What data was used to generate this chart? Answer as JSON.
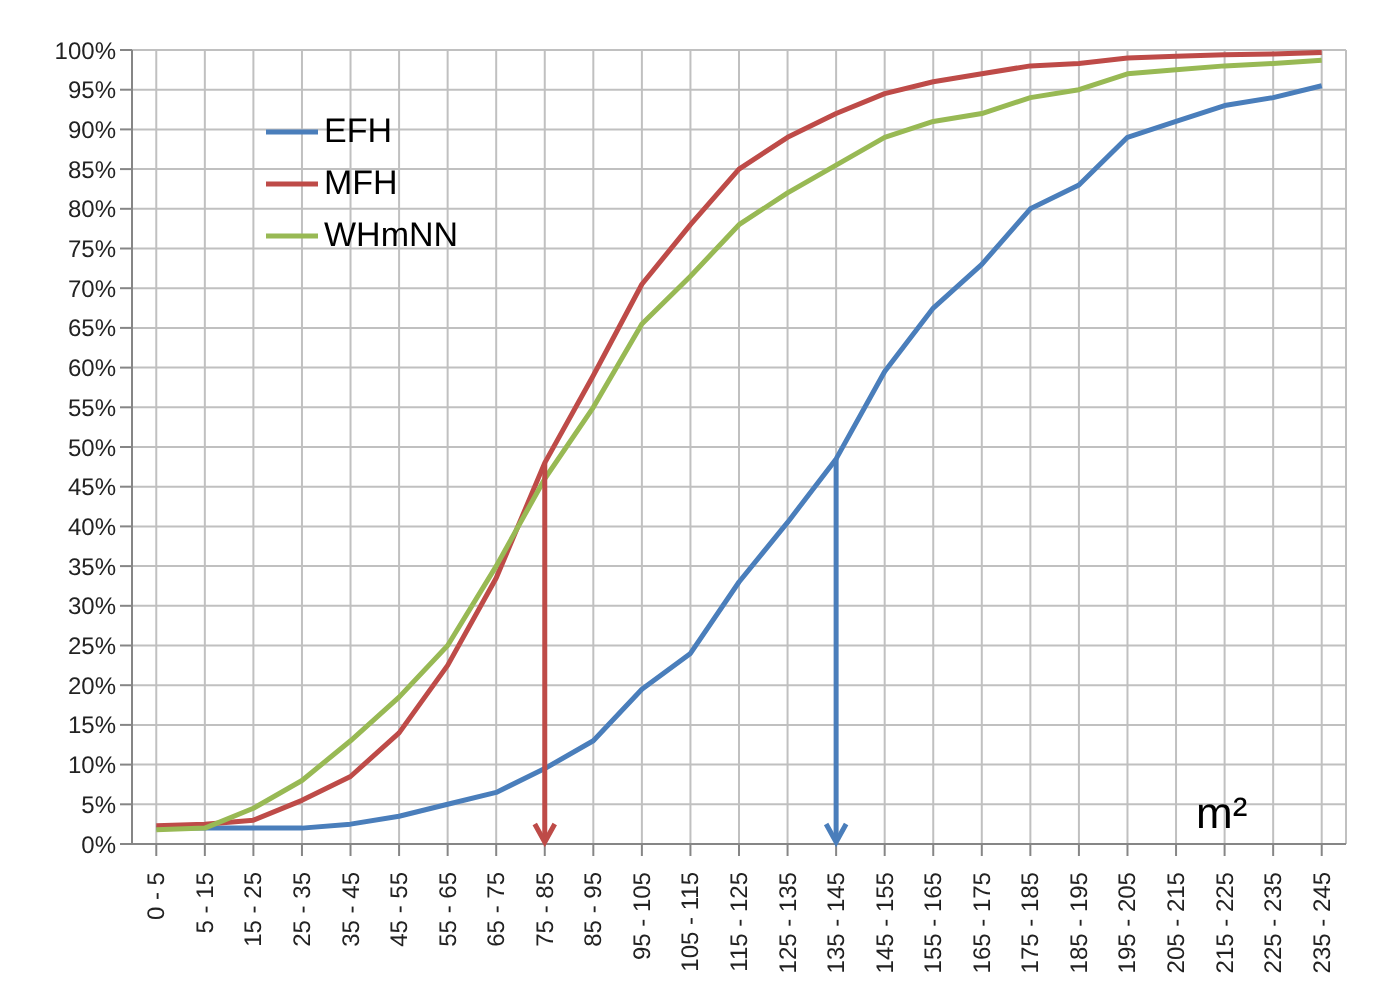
{
  "chart_data": {
    "type": "line",
    "xlabel": "m²",
    "categories": [
      "0 - 5",
      "5 - 15",
      "15 - 25",
      "25 - 35",
      "35 - 45",
      "45 - 55",
      "55 - 65",
      "65 - 75",
      "75 - 85",
      "85 - 95",
      "95 - 105",
      "105 - 115",
      "115 - 125",
      "125 - 135",
      "135 - 145",
      "145 - 155",
      "155 - 165",
      "165 - 175",
      "175 - 185",
      "185 - 195",
      "195 - 205",
      "205 - 215",
      "215 - 225",
      "225 - 235",
      "235 - 245"
    ],
    "series": [
      {
        "name": "EFH",
        "color": "#4a7ebb",
        "values": [
          2,
          2,
          2,
          2,
          2.5,
          3.5,
          5,
          6.5,
          9.5,
          13,
          19.5,
          24,
          33,
          40.5,
          48.5,
          59.5,
          67.5,
          73,
          80,
          83,
          89,
          91,
          93,
          94,
          95.5
        ]
      },
      {
        "name": "MFH",
        "color": "#be4b48",
        "values": [
          2.3,
          2.5,
          3,
          5.5,
          8.5,
          14,
          22.5,
          33.5,
          48,
          59,
          70.5,
          78,
          85,
          89,
          92,
          94.5,
          96,
          97,
          98,
          98.3,
          99,
          99.2,
          99.4,
          99.5,
          99.7
        ]
      },
      {
        "name": "WHmNN",
        "color": "#98b954",
        "values": [
          1.8,
          2,
          4.5,
          8,
          13,
          18.5,
          25,
          35,
          46,
          55,
          65.5,
          71.5,
          78,
          82,
          85.5,
          89,
          91,
          92,
          94,
          95,
          97,
          97.5,
          98,
          98.3,
          98.7
        ]
      }
    ],
    "ylim": [
      0,
      100
    ],
    "yticks": [
      {
        "value": 0,
        "label": "0%"
      },
      {
        "value": 5,
        "label": "5%"
      },
      {
        "value": 10,
        "label": "10%"
      },
      {
        "value": 15,
        "label": "15%"
      },
      {
        "value": 20,
        "label": "20%"
      },
      {
        "value": 25,
        "label": "25%"
      },
      {
        "value": 30,
        "label": "30%"
      },
      {
        "value": 35,
        "label": "35%"
      },
      {
        "value": 40,
        "label": "40%"
      },
      {
        "value": 45,
        "label": "45%"
      },
      {
        "value": 50,
        "label": "50%"
      },
      {
        "value": 55,
        "label": "55%"
      },
      {
        "value": 60,
        "label": "60%"
      },
      {
        "value": 65,
        "label": "65%"
      },
      {
        "value": 70,
        "label": "70%"
      },
      {
        "value": 75,
        "label": "75%"
      },
      {
        "value": 80,
        "label": "80%"
      },
      {
        "value": 85,
        "label": "85%"
      },
      {
        "value": 90,
        "label": "90%"
      },
      {
        "value": 95,
        "label": "95%"
      },
      {
        "value": 100,
        "label": "100%"
      }
    ],
    "grid": true,
    "legend": "top left",
    "marker": "none",
    "line_style": "solid"
  }
}
